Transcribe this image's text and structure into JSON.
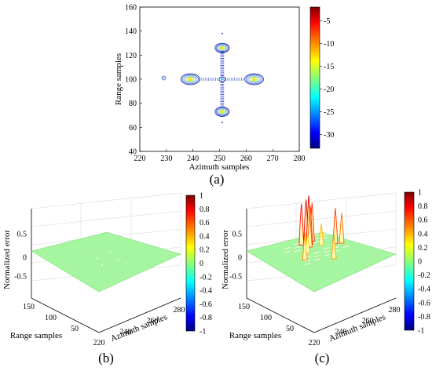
{
  "colormap": {
    "jet_stops": [
      "#000080",
      "#0000ff",
      "#00ffff",
      "#ffff00",
      "#ff0000",
      "#800000"
    ]
  },
  "chart_data": [
    {
      "panel_label": "(a)",
      "type": "heatmap",
      "title": "",
      "xlabel": "Azimuth samples",
      "ylabel": "Range samples",
      "xlim": [
        220,
        280
      ],
      "ylim": [
        40,
        160
      ],
      "xticks": [
        "220",
        "230",
        "240",
        "250",
        "260",
        "270",
        "280"
      ],
      "yticks": [
        "40",
        "60",
        "80",
        "100",
        "120",
        "140",
        "160"
      ],
      "colorbar": {
        "range": [
          -33,
          -2
        ],
        "ticks": [
          "-5",
          "-10",
          "-15",
          "-20",
          "-25",
          "-30"
        ]
      },
      "contour_peaks": [
        {
          "name": "center",
          "x": 251,
          "y": 100,
          "level_db": -30
        },
        {
          "name": "left",
          "x": 239,
          "y": 100,
          "level_db": -10
        },
        {
          "name": "right",
          "x": 263,
          "y": 100,
          "level_db": -10
        },
        {
          "name": "top",
          "x": 251,
          "y": 126,
          "level_db": -10
        },
        {
          "name": "bottom",
          "x": 251,
          "y": 73,
          "level_db": -10
        },
        {
          "name": "isolated",
          "x": 229,
          "y": 101,
          "level_db": -30
        }
      ]
    },
    {
      "panel_label": "(b)",
      "type": "surface",
      "zlabel": "Normalized error",
      "xlabel": "Azimuth samples",
      "ylabel": "Range samples",
      "xticks": [
        "220",
        "240",
        "260",
        "280"
      ],
      "yticks": [
        "50",
        "100",
        "150"
      ],
      "zticks": [
        "0.5",
        "0",
        "-0.5"
      ],
      "zlim": [
        -1,
        1
      ],
      "colorbar": {
        "range": [
          -1,
          1
        ],
        "ticks": [
          "1",
          "0.8",
          "0.6",
          "0.4",
          "0.2",
          "0",
          "-0.2",
          "-0.4",
          "-0.6",
          "-0.8",
          "-1"
        ]
      },
      "surface_level": 0,
      "peaks": []
    },
    {
      "panel_label": "(c)",
      "type": "surface",
      "zlabel": "Normalized error",
      "xlabel": "Azimuth samples",
      "ylabel": "Range samples",
      "xticks": [
        "220",
        "240",
        "260",
        "280"
      ],
      "yticks": [
        "50",
        "100",
        "150"
      ],
      "zticks": [
        "0.5",
        "0",
        "-0.5"
      ],
      "zlim": [
        -1,
        1
      ],
      "colorbar": {
        "range": [
          -1,
          1
        ],
        "ticks": [
          "1",
          "0.8",
          "0.6",
          "0.4",
          "0.2",
          "0",
          "-0.2",
          "-0.4",
          "-0.6",
          "-0.8",
          "-1"
        ]
      },
      "surface_level": 0,
      "peaks": [
        {
          "x": 247,
          "y": 128,
          "z": 0.75
        },
        {
          "x": 250,
          "y": 127,
          "z": 0.8
        },
        {
          "x": 252,
          "y": 127,
          "z": 0.85
        },
        {
          "x": 254,
          "y": 126,
          "z": 0.7
        },
        {
          "x": 251,
          "y": 122,
          "z": 0.7
        },
        {
          "x": 249,
          "y": 118,
          "z": 0.6
        },
        {
          "x": 262,
          "y": 104,
          "z": 0.65
        },
        {
          "x": 265,
          "y": 100,
          "z": 0.55
        },
        {
          "x": 238,
          "y": 100,
          "z": 0.5
        },
        {
          "x": 251,
          "y": 80,
          "z": 0.45
        },
        {
          "x": 255,
          "y": 112,
          "z": 0.4
        },
        {
          "x": 244,
          "y": 110,
          "z": 0.35
        }
      ]
    }
  ]
}
